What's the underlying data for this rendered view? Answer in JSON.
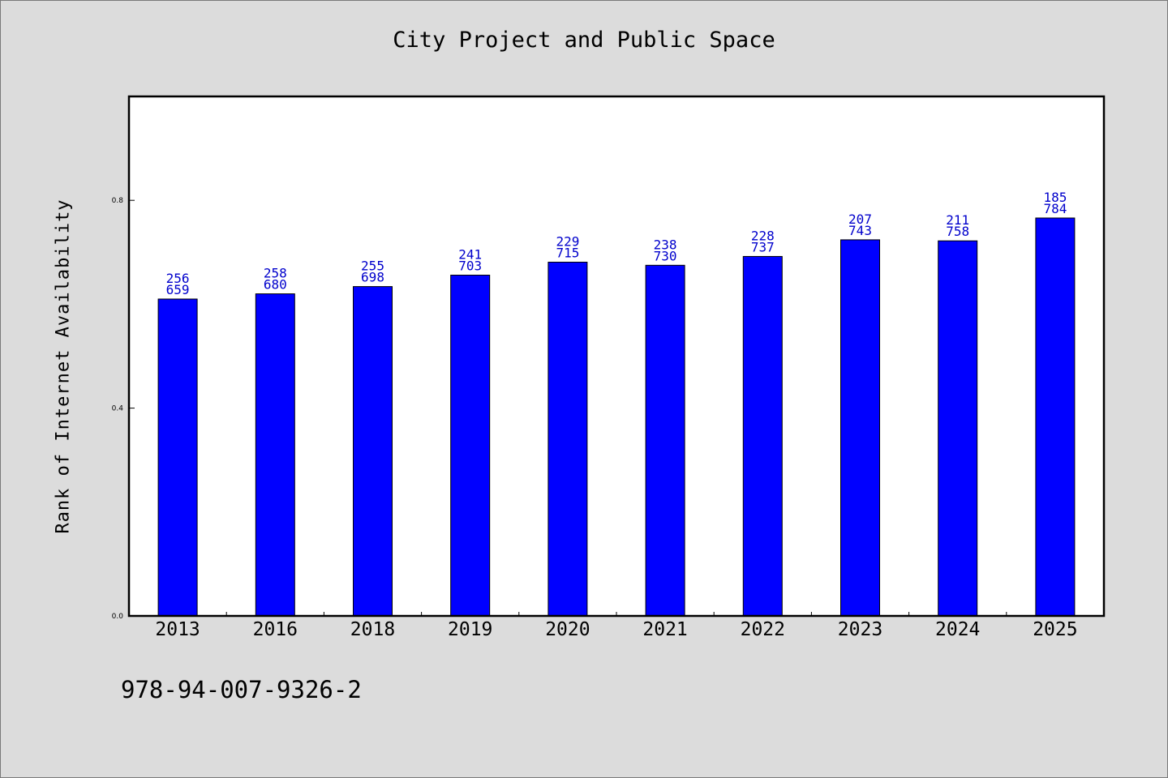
{
  "chart_data": {
    "type": "bar",
    "title": "City Project and Public Space",
    "xlabel": "",
    "ylabel": "Rank of Internet Availability",
    "categories": [
      "2013",
      "2016",
      "2018",
      "2019",
      "2020",
      "2021",
      "2022",
      "2023",
      "2024",
      "2025"
    ],
    "values": [
      0.61,
      0.62,
      0.634,
      0.656,
      0.681,
      0.675,
      0.692,
      0.724,
      0.722,
      0.766
    ],
    "labels_top": [
      "256",
      "258",
      "255",
      "241",
      "229",
      "238",
      "228",
      "207",
      "211",
      "185"
    ],
    "labels_bottom": [
      "659",
      "680",
      "698",
      "703",
      "715",
      "730",
      "737",
      "743",
      "758",
      "784"
    ],
    "ylim": [
      0,
      1.0
    ],
    "yticks": [
      0.0,
      0.4,
      0.8
    ],
    "ytick_labels": [
      "0.0",
      "0.4",
      "0.8"
    ],
    "grid": false,
    "bar_color": "#0000ff",
    "label_color": "#0000cc"
  },
  "footer": {
    "isbn": "978-94-007-9326-2"
  }
}
